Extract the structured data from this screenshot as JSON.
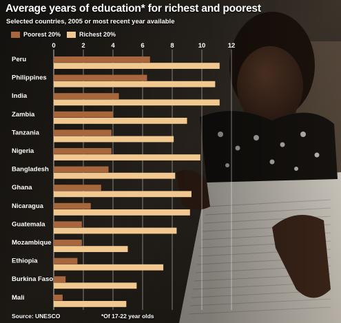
{
  "header": {
    "title": "Average years of education* for richest and poorest",
    "subtitle": "Selected countries, 2005 or most recent year available"
  },
  "footer": {
    "source": "Source: UNESCO",
    "note": "*Of 17-22 year olds"
  },
  "colors": {
    "poorest": "#a8663d",
    "richest": "#f0c890",
    "background": "#1b1814",
    "text": "#ffffff"
  },
  "chart_data": {
    "type": "bar",
    "orientation": "horizontal",
    "title": "Average years of education* for richest and poorest",
    "subtitle": "Selected countries, 2005 or most recent year available",
    "legend_position": "top-left",
    "grid": true,
    "xlim": [
      0,
      12
    ],
    "x_ticks": [
      "0",
      "2",
      "4",
      "6",
      "8",
      "10",
      "12"
    ],
    "categories": [
      "Peru",
      "Philippines",
      "India",
      "Zambia",
      "Tanzania",
      "Nigeria",
      "Bangladesh",
      "Ghana",
      "Nicaragua",
      "Guatemala",
      "Mozambique",
      "Ethiopia",
      "Burkina Faso",
      "Mali"
    ],
    "series": [
      {
        "name": "Poorest 20%",
        "values": [
          6.5,
          6.3,
          4.4,
          4.0,
          3.9,
          3.9,
          3.7,
          3.2,
          2.5,
          1.9,
          1.9,
          1.6,
          0.8,
          0.6
        ]
      },
      {
        "name": "Richest 20%",
        "values": [
          11.2,
          10.9,
          11.2,
          9.0,
          8.1,
          9.9,
          8.2,
          9.3,
          9.2,
          8.3,
          5.0,
          7.4,
          5.6,
          4.9
        ]
      }
    ]
  }
}
